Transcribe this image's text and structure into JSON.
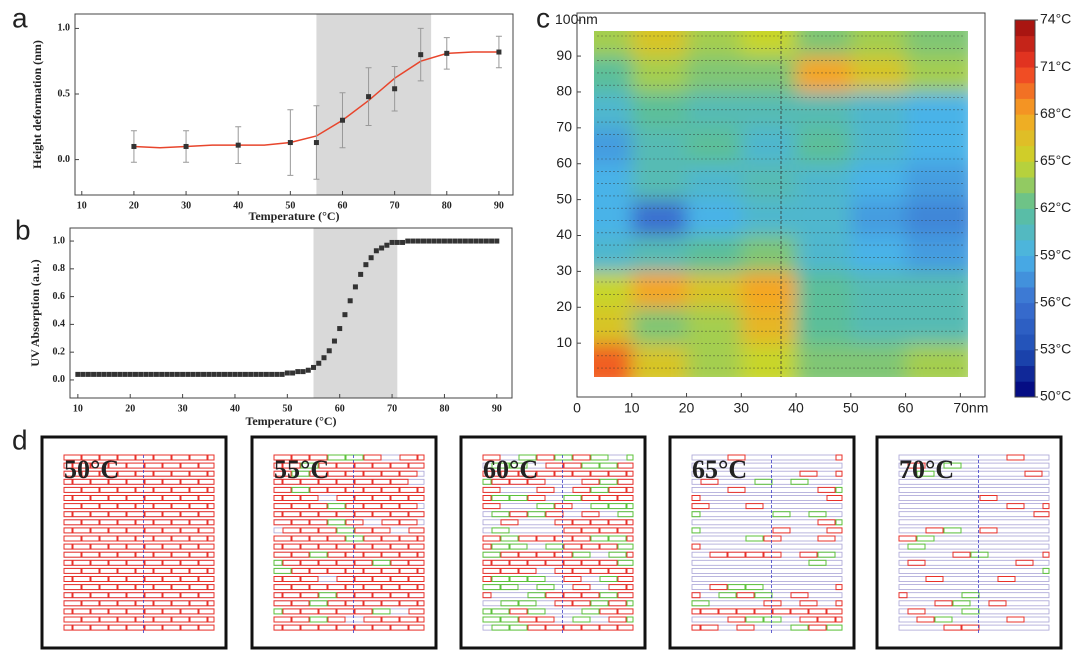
{
  "chart_data": [
    {
      "type": "scatter",
      "label": "a",
      "ylabel": "Height deformation (nm)",
      "xlabel": "Temperature (°C)",
      "x": [
        20,
        30,
        40,
        50,
        55,
        60,
        65,
        70,
        75,
        80,
        90
      ],
      "values": [
        0.1,
        0.1,
        0.11,
        0.13,
        0.13,
        0.3,
        0.48,
        0.54,
        0.8,
        0.81,
        0.82
      ],
      "errors": [
        0.12,
        0.12,
        0.14,
        0.25,
        0.28,
        0.21,
        0.22,
        0.17,
        0.2,
        0.12,
        0.12
      ],
      "color": "#333333",
      "fit": {
        "x": [
          20,
          25,
          30,
          35,
          40,
          45,
          50,
          55,
          60,
          65,
          70,
          75,
          80,
          85,
          90
        ],
        "values": [
          0.1,
          0.09,
          0.1,
          0.11,
          0.11,
          0.11,
          0.13,
          0.18,
          0.3,
          0.45,
          0.62,
          0.75,
          0.81,
          0.82,
          0.82
        ],
        "color": "#e8452c"
      },
      "shade": [
        55,
        77
      ],
      "shade_color": "#d9d9d9",
      "xlim": [
        8.7,
        92.7
      ],
      "ylim": [
        -0.27,
        1.11
      ],
      "xticks": [
        10,
        20,
        30,
        40,
        50,
        60,
        70,
        80,
        90
      ],
      "yticks": [
        {
          "value": 0,
          "label": "0.0"
        },
        {
          "value": 0.5,
          "label": "0.5"
        },
        {
          "value": 1,
          "label": "1.0"
        }
      ]
    },
    {
      "type": "scatter",
      "label": "b",
      "ylabel": "UV Absorption (a.u.)",
      "xlabel": "Temperature (°C)",
      "x": [
        10,
        11,
        12,
        13,
        14,
        15,
        16,
        17,
        18,
        19,
        20,
        21,
        22,
        23,
        24,
        25,
        26,
        27,
        28,
        29,
        30,
        31,
        32,
        33,
        34,
        35,
        36,
        37,
        38,
        39,
        40,
        41,
        42,
        43,
        44,
        45,
        46,
        47,
        48,
        49,
        50,
        51,
        52,
        53,
        54,
        55,
        56,
        57,
        58,
        59,
        60,
        61,
        62,
        63,
        64,
        65,
        66,
        67,
        68,
        69,
        70,
        71,
        72,
        73,
        74,
        75,
        76,
        77,
        78,
        79,
        80,
        81,
        82,
        83,
        84,
        85,
        86,
        87,
        88,
        89,
        90
      ],
      "values": [
        0.04,
        0.04,
        0.04,
        0.04,
        0.04,
        0.04,
        0.04,
        0.04,
        0.04,
        0.04,
        0.04,
        0.04,
        0.04,
        0.04,
        0.04,
        0.04,
        0.04,
        0.04,
        0.04,
        0.04,
        0.04,
        0.04,
        0.04,
        0.04,
        0.04,
        0.04,
        0.04,
        0.04,
        0.04,
        0.04,
        0.04,
        0.04,
        0.04,
        0.04,
        0.04,
        0.04,
        0.04,
        0.04,
        0.04,
        0.04,
        0.05,
        0.05,
        0.06,
        0.06,
        0.07,
        0.09,
        0.12,
        0.16,
        0.21,
        0.28,
        0.37,
        0.47,
        0.57,
        0.67,
        0.76,
        0.83,
        0.88,
        0.93,
        0.95,
        0.97,
        0.99,
        0.99,
        0.99,
        1.0,
        1.0,
        1.0,
        1.0,
        1.0,
        1.0,
        1.0,
        1.0,
        1.0,
        1.0,
        1.0,
        1.0,
        1.0,
        1.0,
        1.0,
        1.0,
        1.0,
        1.0
      ],
      "color": "#333333",
      "shade": [
        55,
        71
      ],
      "shade_color": "#d9d9d9",
      "xlim": [
        8.5,
        92.9
      ],
      "ylim": [
        -0.13,
        1.094
      ],
      "xticks": [
        10,
        20,
        30,
        40,
        50,
        60,
        70,
        80,
        90
      ],
      "yticks": [
        {
          "value": 0,
          "label": "0.0"
        },
        {
          "value": 0.2,
          "label": "0.2"
        },
        {
          "value": 0.4,
          "label": "0.4"
        },
        {
          "value": 0.6,
          "label": "0.6"
        },
        {
          "value": 0.8,
          "label": "0.8"
        },
        {
          "value": 1,
          "label": "1.0"
        }
      ]
    },
    {
      "type": "heatmap",
      "label": "c",
      "x": [
        5,
        15,
        25,
        35,
        45,
        55,
        65
      ],
      "y": [
        5,
        15,
        25,
        35,
        45,
        55,
        65,
        75,
        85,
        95
      ],
      "z": [
        [
          70,
          66,
          64,
          65,
          63,
          63,
          64
        ],
        [
          66,
          63,
          64,
          67,
          62,
          61,
          61
        ],
        [
          65,
          68,
          66,
          68,
          62,
          61,
          61
        ],
        [
          60,
          61,
          62,
          63,
          60,
          59,
          58
        ],
        [
          59,
          56,
          59,
          60,
          60,
          58,
          57
        ],
        [
          59,
          61,
          60,
          61,
          60,
          59,
          58
        ],
        [
          58,
          61,
          62,
          60,
          62,
          60,
          59
        ],
        [
          60,
          62,
          61,
          61,
          61,
          60,
          59
        ],
        [
          62,
          64,
          63,
          63,
          68,
          66,
          64
        ],
        [
          64,
          66,
          64,
          65,
          63,
          64,
          63
        ]
      ],
      "xlim": [
        0,
        74.5
      ],
      "ylim": [
        -5,
        102
      ],
      "xticks": [
        0,
        10,
        20,
        30,
        40,
        50,
        60,
        {
          "value": 70,
          "label": "70nm"
        }
      ],
      "yticks": [
        10,
        20,
        30,
        40,
        50,
        60,
        70,
        80,
        90,
        {
          "value": 100,
          "label": "100nm"
        }
      ],
      "colorbar": {
        "ticks": [
          {
            "value": 50,
            "label": "50°C"
          },
          {
            "value": 53,
            "label": "53°C"
          },
          {
            "value": 56,
            "label": "56°C"
          },
          {
            "value": 59,
            "label": "59°C"
          },
          {
            "value": 62,
            "label": "62°C"
          },
          {
            "value": 65,
            "label": "65°C"
          },
          {
            "value": 68,
            "label": "68°C"
          },
          {
            "value": 71,
            "label": "71°C"
          },
          {
            "value": 74,
            "label": "74°C"
          }
        ],
        "colors": [
          "#00007a",
          "#1f4fb5",
          "#3a6fd0",
          "#4ab3e8",
          "#5cbf9a",
          "#c8d52a",
          "#f5a623",
          "#ef3b24",
          "#9b0d0d"
        ]
      }
    }
  ],
  "panel_d": {
    "label": "d",
    "titles": [
      "50°C",
      "55°C",
      "60°C",
      "65°C",
      "70°C"
    ]
  }
}
